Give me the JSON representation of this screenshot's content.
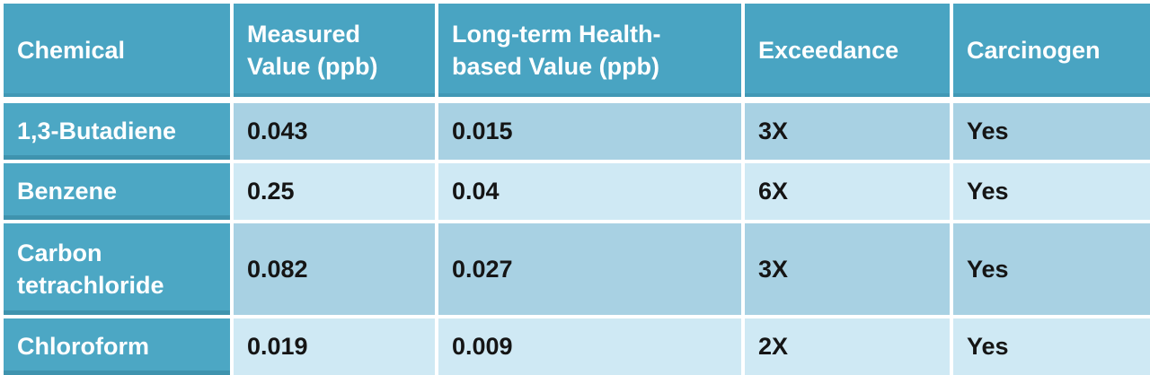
{
  "chart_data": {
    "type": "table",
    "columns": [
      "Chemical",
      "Measured Value (ppb)",
      "Long-term Health-based Value (ppb)",
      "Exceedance",
      "Carcinogen"
    ],
    "rows": [
      [
        "1,3-Butadiene",
        "0.043",
        "0.015",
        "3X",
        "Yes"
      ],
      [
        "Benzene",
        "0.25",
        "0.04",
        "6X",
        "Yes"
      ],
      [
        "Carbon tetrachloride",
        "0.082",
        "0.027",
        "3X",
        "Yes"
      ],
      [
        "Chloroform",
        "0.019",
        "0.009",
        "2X",
        "Yes"
      ]
    ]
  },
  "colors": {
    "header_bg": "#49a4c2",
    "chemical_column_bg": "#4ca7c4",
    "row_odd_bg": "#a8d1e3",
    "row_even_bg": "#cfe9f4",
    "header_text": "#ffffff",
    "data_text": "#151515",
    "grid_line": "#ffffff"
  }
}
